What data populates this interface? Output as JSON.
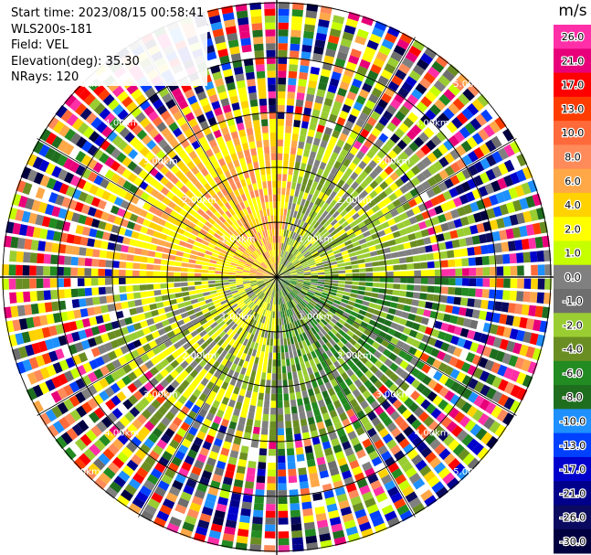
{
  "info": {
    "start_time": "Start time: 2023/08/15 00:58:41",
    "instrument": "WLS200s-181",
    "field": "Field: VEL",
    "elevation": "Elevation(deg): 35.30",
    "nrays": "NRays: 120"
  },
  "chart_data": {
    "type": "ppi",
    "field": "VEL",
    "n_rays": 120,
    "range_rings_labels": [
      "1.00km",
      "2.00km",
      "3.00km",
      "4.00km",
      "5.00km"
    ],
    "colorbar": {
      "unit": "m/s",
      "tick_labels": [
        "26.0",
        "21.0",
        "17.0",
        "13.0",
        "10.0",
        "8.0",
        "6.0",
        "4.0",
        "2.0",
        "1.0",
        "0.0",
        "-1.0",
        "-2.0",
        "-4.0",
        "-6.0",
        "-8.0",
        "-10.0",
        "-13.0",
        "-17.0",
        "-21.0",
        "-26.0",
        "-30.0"
      ],
      "colors": [
        "#ff2fa8",
        "#e8007a",
        "#ff0000",
        "#ff3c00",
        "#ff6a3a",
        "#ff8a5a",
        "#ffa848",
        "#ffd200",
        "#ffff00",
        "#c6ff00",
        "#808080",
        "#6e6e6e",
        "#9acd32",
        "#6b8e23",
        "#228b22",
        "#1f6e1f",
        "#1e90ff",
        "#0040ff",
        "#0000cd",
        "#00008b",
        "#0a0a60",
        "#000040"
      ]
    }
  }
}
